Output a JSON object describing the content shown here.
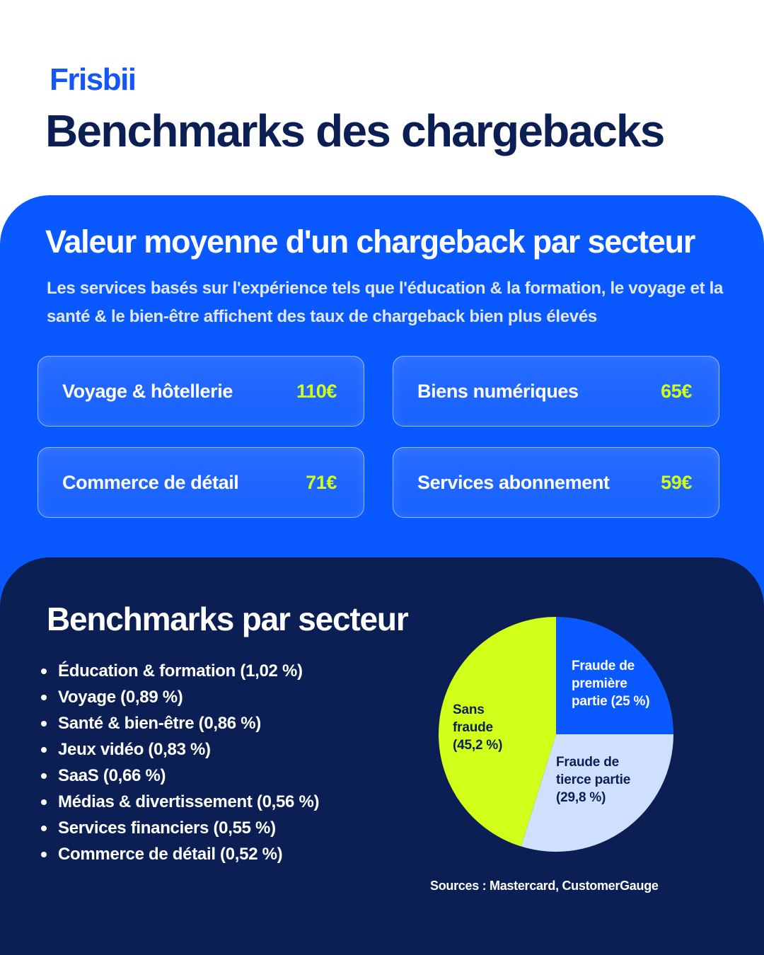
{
  "brand": {
    "logo_text": "Frisbii",
    "color": "#1457f5"
  },
  "page_title": "Benchmarks des chargebacks",
  "average_value": {
    "title": "Valeur moyenne d'un chargeback par secteur",
    "description": "Les services basés sur l'expérience tels que l'éducation & la formation, le voyage et la santé & le bien-être affichent des taux de chargeback bien plus élevés",
    "cards": [
      {
        "label": "Voyage & hôtellerie",
        "value": "110€"
      },
      {
        "label": "Biens numériques",
        "value": "65€"
      },
      {
        "label": "Commerce de détail",
        "value": "71€"
      },
      {
        "label": "Services abonnement",
        "value": "59€"
      }
    ],
    "accent_color": "#d2ff1a",
    "panel_color": "#0a58ff"
  },
  "benchmarks": {
    "title": "Benchmarks par secteur",
    "items": [
      "Éducation & formation (1,02 %)",
      "Voyage (0,89 %)",
      "Santé & bien-être (0,86 %)",
      "Jeux vidéo (0,83 %)",
      "SaaS (0,66 %)",
      "Médias & divertissement (0,56 %)",
      "Services financiers (0,55 %)",
      "Commerce de détail (0,52 %)"
    ],
    "panel_color": "#0b1f55"
  },
  "chart_data": {
    "type": "pie",
    "title": "",
    "slices": [
      {
        "label": "Fraude de première partie (25 %)",
        "value": 25,
        "color": "#0a58ff",
        "text_color": "#ffffff"
      },
      {
        "label": "Fraude de tierce partie (29,8 %)",
        "value": 29.8,
        "color": "#cfe0ff",
        "text_color": "#0b1f55"
      },
      {
        "label": "Sans fraude (45,2 %)",
        "value": 45.2,
        "color": "#d2ff1a",
        "text_color": "#0b1f55"
      }
    ]
  },
  "sources": "Sources : Mastercard, CustomerGauge"
}
